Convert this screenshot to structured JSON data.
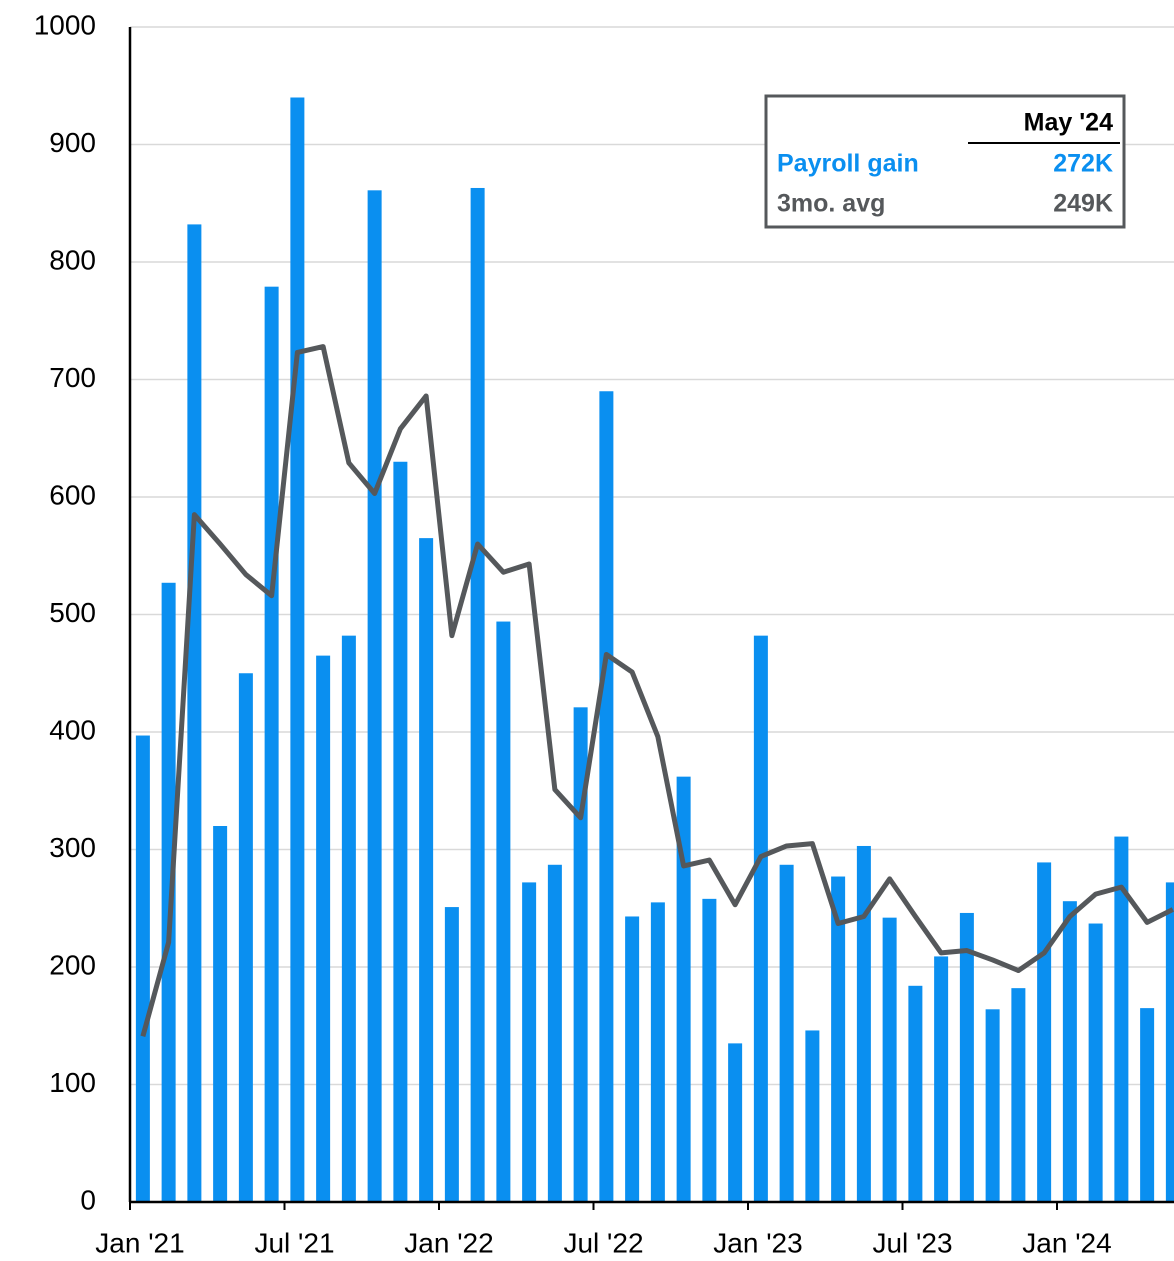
{
  "chart_data": {
    "type": "bar+line",
    "categories": [
      "Jan '21",
      null,
      null,
      null,
      null,
      null,
      "Jul '21",
      null,
      null,
      null,
      null,
      null,
      "Jan '22",
      null,
      null,
      null,
      null,
      null,
      "Jul '22",
      null,
      null,
      null,
      null,
      null,
      "Jan '23",
      null,
      null,
      null,
      null,
      null,
      "Jul '23",
      null,
      null,
      null,
      null,
      null,
      "Jan '24",
      null,
      null,
      null,
      null
    ],
    "series": [
      {
        "name": "Payroll gain",
        "type": "bar",
        "color": "#0a8ff0",
        "latest_label": "272K",
        "values": [
          397,
          527,
          832,
          320,
          450,
          779,
          940,
          465,
          482,
          861,
          630,
          565,
          251,
          863,
          494,
          272,
          287,
          421,
          690,
          243,
          255,
          362,
          258,
          135,
          482,
          287,
          146,
          277,
          303,
          242,
          184,
          209,
          246,
          164,
          182,
          289,
          256,
          237,
          311,
          165,
          272
        ]
      },
      {
        "name": "3mo. avg",
        "type": "line",
        "color": "#55585b",
        "latest_label": "249K",
        "values": [
          141,
          221,
          585,
          560,
          534,
          516,
          723,
          728,
          629,
          603,
          658,
          686,
          482,
          560,
          536,
          543,
          351,
          327,
          466,
          451,
          396,
          286,
          291,
          253,
          294,
          303,
          305,
          237,
          243,
          275,
          243,
          212,
          214,
          206,
          197,
          212,
          243,
          262,
          268,
          238,
          249
        ]
      }
    ],
    "legend_header": "May '24",
    "ylim": [
      0,
      1000
    ],
    "yticks": [
      0,
      100,
      200,
      300,
      400,
      500,
      600,
      700,
      800,
      900,
      1000
    ],
    "grid": true
  }
}
